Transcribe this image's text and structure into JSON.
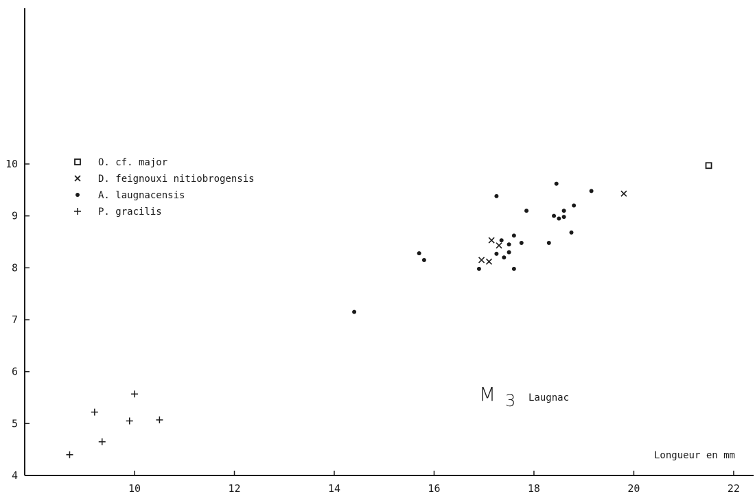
{
  "chart_data": {
    "type": "scatter",
    "title": "",
    "xlabel": "Longueur en mm",
    "ylabel": "",
    "xlim": [
      7.8,
      22.4
    ],
    "ylim": [
      4,
      13
    ],
    "x_ticks": [
      10,
      12,
      14,
      16,
      18,
      20,
      22
    ],
    "y_ticks": [
      4,
      5,
      6,
      7,
      8,
      9,
      10
    ],
    "grid": false,
    "legend": "top-left",
    "annotation": {
      "main": "M",
      "subscript": "3",
      "suffix": "Laugnac"
    },
    "series": [
      {
        "name": "O. cf. major",
        "marker": "square",
        "points": [
          [
            21.5,
            9.97
          ]
        ]
      },
      {
        "name": "D. feignouxi nitiobrogensis",
        "marker": "x",
        "points": [
          [
            19.8,
            9.43
          ],
          [
            17.15,
            8.53
          ],
          [
            17.3,
            8.43
          ],
          [
            16.95,
            8.15
          ],
          [
            17.1,
            8.12
          ]
        ]
      },
      {
        "name": "A. laugnacensis",
        "marker": "dot",
        "points": [
          [
            14.4,
            7.15
          ],
          [
            15.7,
            8.28
          ],
          [
            15.8,
            8.15
          ],
          [
            16.9,
            7.98
          ],
          [
            17.25,
            9.38
          ],
          [
            17.25,
            8.27
          ],
          [
            17.35,
            8.53
          ],
          [
            17.4,
            8.2
          ],
          [
            17.5,
            8.3
          ],
          [
            17.5,
            8.45
          ],
          [
            17.6,
            8.62
          ],
          [
            17.6,
            7.98
          ],
          [
            17.75,
            8.48
          ],
          [
            17.85,
            9.1
          ],
          [
            18.3,
            8.48
          ],
          [
            18.4,
            9.0
          ],
          [
            18.45,
            9.62
          ],
          [
            18.5,
            8.95
          ],
          [
            18.6,
            8.98
          ],
          [
            18.6,
            9.1
          ],
          [
            18.75,
            8.68
          ],
          [
            18.8,
            9.2
          ],
          [
            19.15,
            9.48
          ]
        ]
      },
      {
        "name": "P. gracilis",
        "marker": "plus",
        "points": [
          [
            8.7,
            4.4
          ],
          [
            9.2,
            5.22
          ],
          [
            9.35,
            4.65
          ],
          [
            9.9,
            5.05
          ],
          [
            10.0,
            5.57
          ],
          [
            10.5,
            5.07
          ]
        ]
      }
    ]
  }
}
